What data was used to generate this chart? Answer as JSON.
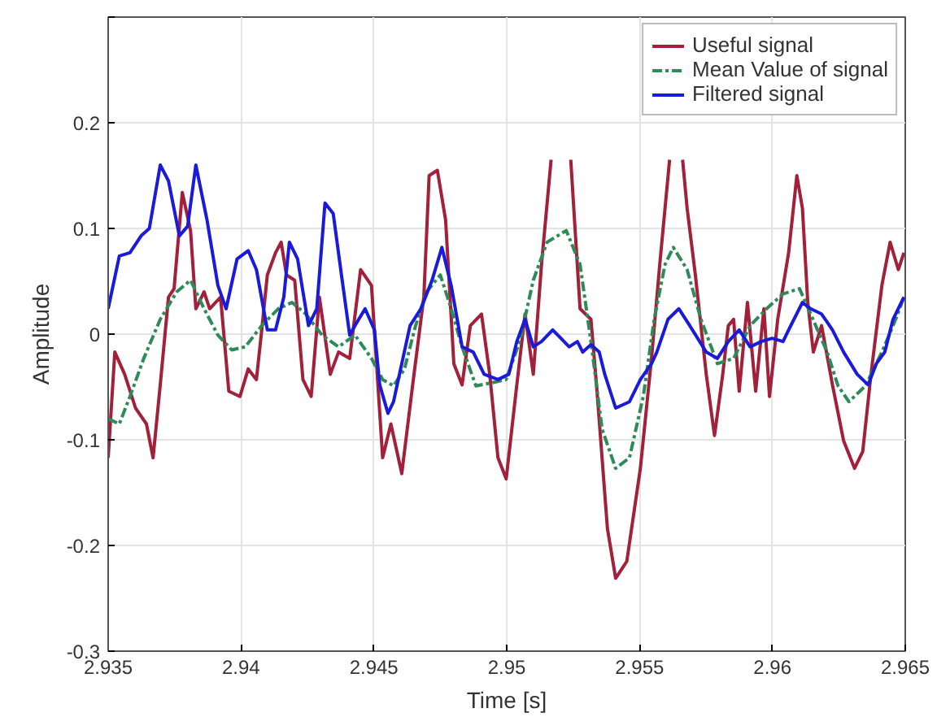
{
  "chart_data": {
    "type": "line",
    "xlabel": "Time [s]",
    "ylabel": "Amplitude",
    "xlim": [
      2.935,
      2.965
    ],
    "ylim": [
      -0.3,
      0.3
    ],
    "xticks": [
      2.935,
      2.94,
      2.945,
      2.95,
      2.955,
      2.96,
      2.965
    ],
    "yticks": [
      -0.3,
      -0.2,
      -0.1,
      0,
      0.1,
      0.2,
      {
        "value": 0.3,
        "label": null
      }
    ],
    "grid": true,
    "legend": "top right",
    "series": [
      {
        "name": "Useful signal",
        "color": "#a3203a",
        "line_style": "solid",
        "x": [
          2.935,
          2.93525,
          2.93562,
          2.93603,
          2.93644,
          2.93669,
          2.93696,
          2.93727,
          2.93748,
          2.93779,
          2.9381,
          2.9383,
          2.93861,
          2.93882,
          2.93923,
          2.93954,
          2.93996,
          2.94027,
          2.94058,
          2.94078,
          2.94099,
          2.9413,
          2.94151,
          2.94171,
          2.94202,
          2.94233,
          2.94264,
          2.94295,
          2.94336,
          2.94367,
          2.94409,
          2.9445,
          2.94491,
          2.94533,
          2.94564,
          2.94605,
          2.94646,
          2.94688,
          2.94708,
          2.94739,
          2.9477,
          2.94801,
          2.94832,
          2.94863,
          2.94905,
          2.94936,
          2.94967,
          2.94998,
          2.95038,
          2.95069,
          2.951,
          2.95131,
          2.95167,
          2.95204,
          2.95241,
          2.95276,
          2.95317,
          2.95338,
          2.95379,
          2.9541,
          2.95452,
          2.95503,
          2.95545,
          2.95576,
          2.95613,
          2.95644,
          2.95662,
          2.95679,
          2.9571,
          2.95751,
          2.95782,
          2.95813,
          2.95834,
          2.95854,
          2.95875,
          2.95906,
          2.95937,
          2.95968,
          2.95989,
          2.9602,
          2.96061,
          2.96092,
          2.96113,
          2.96133,
          2.96154,
          2.96185,
          2.96226,
          2.96268,
          2.96309,
          2.9634,
          2.96371,
          2.96412,
          2.96443,
          2.96474,
          2.96495
        ],
        "values": [
          -0.117,
          -0.017,
          -0.038,
          -0.07,
          -0.085,
          -0.117,
          -0.048,
          0.035,
          0.043,
          0.134,
          0.098,
          0.024,
          0.04,
          0.024,
          0.035,
          -0.054,
          -0.059,
          -0.033,
          -0.043,
          0.004,
          0.056,
          0.077,
          0.087,
          0.056,
          0.051,
          -0.043,
          -0.059,
          0.035,
          -0.038,
          -0.017,
          -0.023,
          0.061,
          0.046,
          -0.117,
          -0.085,
          -0.132,
          -0.048,
          0.035,
          0.15,
          0.155,
          0.108,
          -0.028,
          -0.048,
          0.008,
          0.019,
          -0.038,
          -0.117,
          -0.137,
          -0.048,
          0.019,
          -0.038,
          0.066,
          0.165,
          null,
          0.165,
          0.024,
          0.014,
          -0.048,
          -0.184,
          -0.231,
          -0.215,
          -0.127,
          -0.023,
          0.066,
          0.165,
          null,
          0.165,
          0.119,
          0.056,
          -0.038,
          -0.096,
          -0.038,
          0.008,
          0.014,
          -0.054,
          0.03,
          -0.054,
          0.024,
          -0.059,
          0.014,
          0.077,
          0.15,
          0.119,
          0.03,
          -0.017,
          0.008,
          -0.048,
          -0.101,
          -0.127,
          -0.111,
          -0.038,
          0.046,
          0.087,
          0.061,
          0.077
        ]
      },
      {
        "name": "Mean Value of signal",
        "color": "#2e8b57",
        "line_style": "dashed",
        "x": [
          2.935,
          2.93542,
          2.93582,
          2.93634,
          2.93696,
          2.93758,
          2.9381,
          2.93861,
          2.93913,
          2.93965,
          2.94016,
          2.94078,
          2.9414,
          2.94192,
          2.94244,
          2.94305,
          2.94367,
          2.94429,
          2.94491,
          2.94533,
          2.94574,
          2.94615,
          2.94657,
          2.94698,
          2.9475,
          2.94791,
          2.94832,
          2.94884,
          2.94946,
          2.94998,
          2.95049,
          2.951,
          2.95152,
          2.95224,
          2.95276,
          2.95317,
          2.95359,
          2.9541,
          2.95462,
          2.95514,
          2.95555,
          2.95596,
          2.95627,
          2.95679,
          2.95731,
          2.95793,
          2.95854,
          2.95916,
          2.95978,
          2.9604,
          2.96102,
          2.96144,
          2.96206,
          2.96247,
          2.96288,
          2.9635,
          2.96412,
          2.96464,
          2.96495
        ],
        "values": [
          -0.08,
          -0.085,
          -0.059,
          -0.023,
          0.014,
          0.04,
          0.051,
          0.024,
          -0.001,
          -0.015,
          -0.012,
          0.008,
          0.024,
          0.03,
          0.019,
          -0.001,
          -0.012,
          -0.001,
          -0.023,
          -0.043,
          -0.049,
          -0.033,
          0.008,
          0.04,
          0.056,
          0.024,
          -0.012,
          -0.049,
          -0.046,
          -0.043,
          -0.007,
          0.051,
          0.087,
          0.098,
          0.066,
          -0.007,
          -0.09,
          -0.127,
          -0.117,
          -0.059,
          0.014,
          0.066,
          0.082,
          0.061,
          0.014,
          -0.028,
          -0.023,
          0.008,
          0.024,
          0.038,
          0.043,
          0.019,
          -0.017,
          -0.049,
          -0.064,
          -0.049,
          -0.017,
          0.014,
          0.035
        ]
      },
      {
        "name": "Filtered signal",
        "color": "#1a1adb",
        "line_style": "solid",
        "x": [
          2.935,
          2.93542,
          2.93582,
          2.93624,
          2.93655,
          2.93696,
          2.93727,
          2.93768,
          2.93799,
          2.9383,
          2.93872,
          2.93913,
          2.93944,
          2.93985,
          2.94027,
          2.94058,
          2.94099,
          2.9413,
          2.94161,
          2.94182,
          2.94213,
          2.94254,
          2.94285,
          2.94316,
          2.94347,
          2.94378,
          2.94409,
          2.94429,
          2.94467,
          2.94502,
          2.94522,
          2.94553,
          2.94574,
          2.94636,
          2.94677,
          2.94719,
          2.94756,
          2.94791,
          2.94832,
          2.94874,
          2.94915,
          2.94967,
          2.95008,
          2.95038,
          2.95069,
          2.951,
          2.95131,
          2.95173,
          2.95204,
          2.95235,
          2.95266,
          2.95286,
          2.95317,
          2.95348,
          2.95369,
          2.9541,
          2.95462,
          2.95503,
          2.95545,
          2.95565,
          2.95607,
          2.95648,
          2.95689,
          2.95751,
          2.95793,
          2.95834,
          2.95875,
          2.95916,
          2.95958,
          2.95999,
          2.9604,
          2.96061,
          2.96113,
          2.96144,
          2.96185,
          2.96226,
          2.96268,
          2.96319,
          2.9636,
          2.96391,
          2.96423,
          2.96454,
          2.96495
        ],
        "values": [
          0.024,
          0.074,
          0.077,
          0.093,
          0.1,
          0.16,
          0.145,
          0.093,
          0.102,
          0.16,
          0.108,
          0.046,
          0.024,
          0.071,
          0.079,
          0.061,
          0.004,
          0.004,
          0.035,
          0.087,
          0.071,
          0.008,
          0.024,
          0.124,
          0.114,
          0.056,
          -0.001,
          0.008,
          0.024,
          0.004,
          -0.048,
          -0.075,
          -0.064,
          0.008,
          0.024,
          0.051,
          0.082,
          0.046,
          -0.012,
          -0.017,
          -0.038,
          -0.043,
          -0.038,
          -0.007,
          0.014,
          -0.012,
          -0.007,
          0.004,
          -0.004,
          -0.012,
          -0.007,
          -0.017,
          -0.01,
          -0.017,
          -0.038,
          -0.07,
          -0.064,
          -0.043,
          -0.028,
          -0.017,
          0.014,
          0.024,
          0.008,
          -0.017,
          -0.023,
          -0.007,
          0.004,
          -0.012,
          -0.007,
          -0.004,
          -0.007,
          0.004,
          0.03,
          0.024,
          0.019,
          0.004,
          -0.017,
          -0.038,
          -0.048,
          -0.028,
          -0.017,
          0.014,
          0.035
        ]
      }
    ]
  }
}
